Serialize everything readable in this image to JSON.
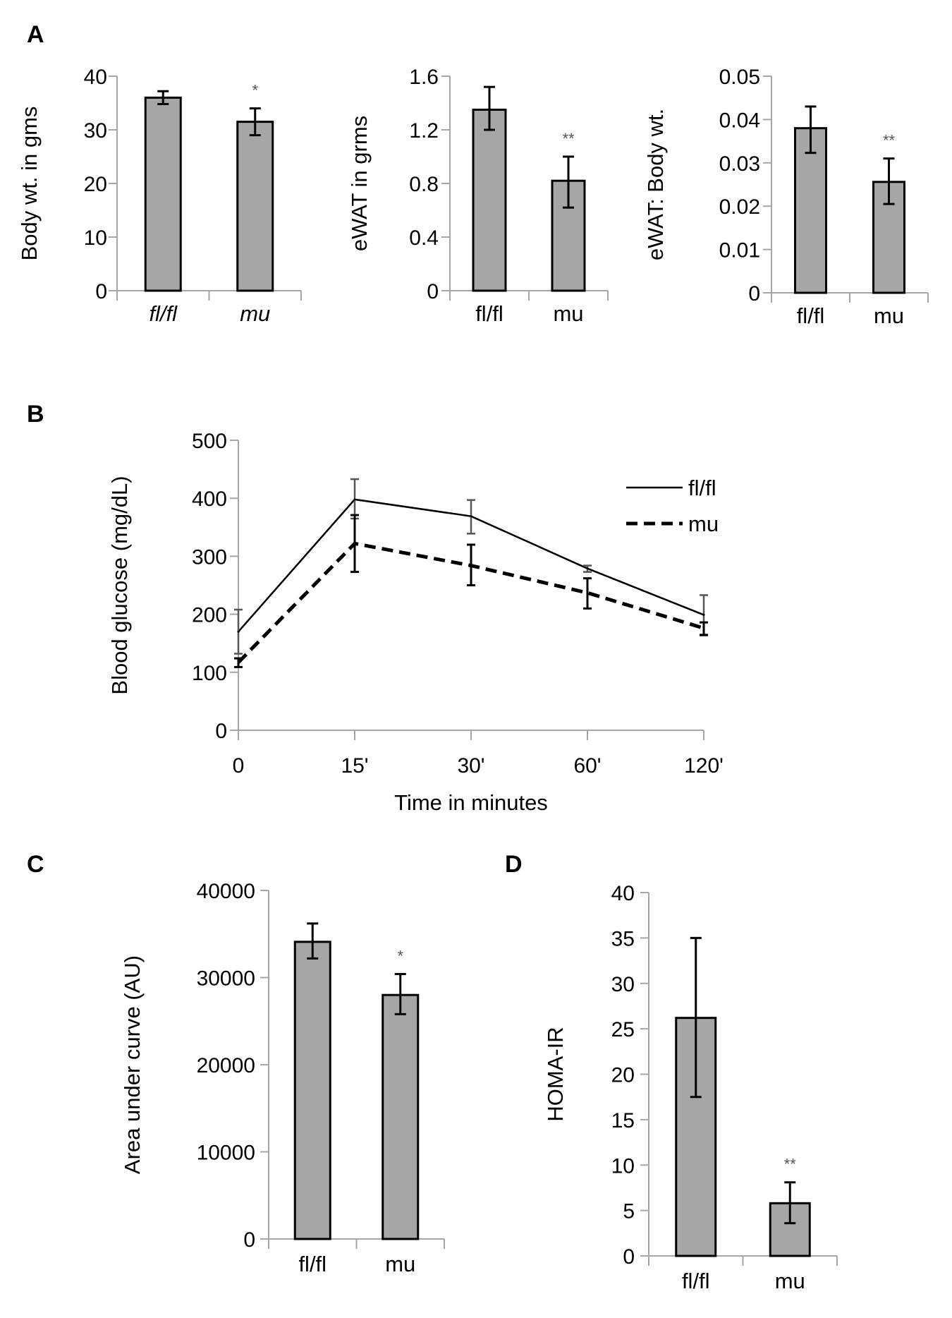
{
  "panels": {
    "A": "A",
    "B": "B",
    "C": "C",
    "D": "D"
  },
  "chart_data": [
    {
      "id": "A1",
      "panel": "A",
      "type": "bar",
      "title": "",
      "ylabel": "Body wt. in gms",
      "xlabel": "",
      "categories": [
        "fl/fl",
        "mu"
      ],
      "categories_italic": true,
      "values": [
        36,
        31.5
      ],
      "error_upper": [
        37.2,
        34
      ],
      "error_lower": [
        34.8,
        29
      ],
      "significance": [
        "",
        "*"
      ],
      "ylim": [
        0,
        40
      ],
      "yticks": [
        0,
        10,
        20,
        30,
        40
      ],
      "ytick_labels": [
        "0",
        "10",
        "20",
        "30",
        "40"
      ],
      "bar_color": "#a6a6a6",
      "grid": false
    },
    {
      "id": "A2",
      "panel": "A",
      "type": "bar",
      "title": "",
      "ylabel": "eWAT in grms",
      "xlabel": "",
      "categories": [
        "fl/fl",
        "mu"
      ],
      "categories_italic": false,
      "values": [
        1.35,
        0.82
      ],
      "error_upper": [
        1.52,
        1.0
      ],
      "error_lower": [
        1.2,
        0.62
      ],
      "significance": [
        "",
        "**"
      ],
      "ylim": [
        0,
        1.6
      ],
      "yticks": [
        0,
        0.4,
        0.8,
        1.2,
        1.6
      ],
      "ytick_labels": [
        "0",
        "0.4",
        "0.8",
        "1.2",
        "1.6"
      ],
      "bar_color": "#a6a6a6",
      "grid": false
    },
    {
      "id": "A3",
      "panel": "A",
      "type": "bar",
      "title": "",
      "ylabel": "eWAT: Body wt.",
      "xlabel": "",
      "categories": [
        "fl/fl",
        "mu"
      ],
      "categories_italic": false,
      "values": [
        0.038,
        0.0256
      ],
      "error_upper": [
        0.043,
        0.031
      ],
      "error_lower": [
        0.0323,
        0.0205
      ],
      "significance": [
        "",
        "**"
      ],
      "ylim": [
        0,
        0.05
      ],
      "yticks": [
        0,
        0.01,
        0.02,
        0.03,
        0.04,
        0.05
      ],
      "ytick_labels": [
        "0",
        "0.01",
        "0.02",
        "0.03",
        "0.04",
        "0.05"
      ],
      "bar_color": "#a6a6a6",
      "grid": false
    },
    {
      "id": "B",
      "panel": "B",
      "type": "line",
      "title": "",
      "ylabel": "Blood glucose (mg/dL)",
      "xlabel": "Time in minutes",
      "x": [
        "0",
        "15'",
        "30'",
        "60'",
        "120'"
      ],
      "series": [
        {
          "name": "fl/fl",
          "style": "solid",
          "values": [
            170,
            398,
            369,
            279,
            199
          ],
          "error_upper": [
            208,
            433,
            397,
            284,
            233
          ],
          "error_lower": [
            132,
            365,
            339,
            273,
            165
          ]
        },
        {
          "name": "mu",
          "style": "dashed",
          "values": [
            117,
            322,
            284,
            237,
            176
          ],
          "error_upper": [
            124,
            371,
            320,
            262,
            186
          ],
          "error_lower": [
            109,
            273,
            250,
            210,
            164
          ]
        }
      ],
      "ylim": [
        0,
        500
      ],
      "yticks": [
        0,
        100,
        200,
        300,
        400,
        500
      ],
      "ytick_labels": [
        "0",
        "100",
        "200",
        "300",
        "400",
        "500"
      ],
      "legend_position": "top-right",
      "grid": false
    },
    {
      "id": "C",
      "panel": "C",
      "type": "bar",
      "title": "",
      "ylabel": "Area under curve (AU)",
      "xlabel": "",
      "categories": [
        "fl/fl",
        "mu"
      ],
      "categories_italic": false,
      "values": [
        34100,
        28000
      ],
      "error_upper": [
        36200,
        30400
      ],
      "error_lower": [
        32200,
        25800
      ],
      "significance": [
        "",
        "*"
      ],
      "ylim": [
        0,
        40000
      ],
      "yticks": [
        0,
        10000,
        20000,
        30000,
        40000
      ],
      "ytick_labels": [
        "0",
        "10000",
        "20000",
        "30000",
        "40000"
      ],
      "bar_color": "#a6a6a6",
      "grid": false
    },
    {
      "id": "D",
      "panel": "D",
      "type": "bar",
      "title": "",
      "ylabel": "HOMA-IR",
      "xlabel": "",
      "categories": [
        "fl/fl",
        "mu"
      ],
      "categories_italic": false,
      "values": [
        26.2,
        5.8
      ],
      "error_upper": [
        35,
        8.1
      ],
      "error_lower": [
        17.5,
        3.6
      ],
      "significance": [
        "",
        "**"
      ],
      "ylim": [
        0,
        40
      ],
      "yticks": [
        0,
        5,
        10,
        15,
        20,
        25,
        30,
        35,
        40
      ],
      "ytick_labels": [
        "0",
        "5",
        "10",
        "15",
        "20",
        "25",
        "30",
        "35",
        "40"
      ],
      "bar_color": "#a6a6a6",
      "grid": false
    }
  ]
}
